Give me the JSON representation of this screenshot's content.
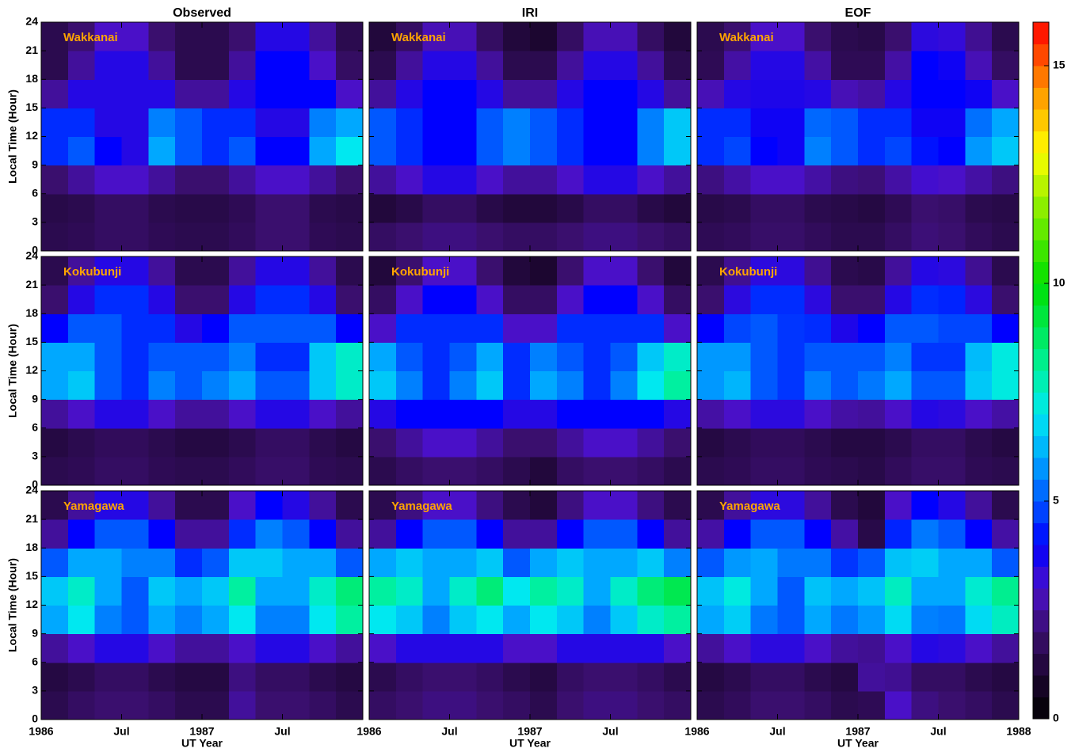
{
  "chart_data": {
    "type": "heatmap",
    "columns": [
      "Observed",
      "IRI",
      "EOF"
    ],
    "ylabel": "Local Time (Hour)",
    "xlabel": "UT Year",
    "xlim": [
      1986,
      1988
    ],
    "xticks": [
      1986,
      {
        "value": 1986.5,
        "label": "Jul"
      },
      1987,
      {
        "value": 1987.5,
        "label": "Jul"
      },
      1988
    ],
    "ylim": [
      0,
      24
    ],
    "yticks": [
      0,
      3,
      6,
      9,
      12,
      15,
      18,
      21,
      24
    ],
    "clim": [
      0,
      16
    ],
    "cticks": [
      0,
      5,
      10,
      15
    ],
    "colorscale": [
      [
        0,
        "#000000"
      ],
      [
        1,
        "#1c0630"
      ],
      [
        2,
        "#3a0f6e"
      ],
      [
        3,
        "#4a10c8"
      ],
      [
        4,
        "#0000ff"
      ],
      [
        5,
        "#0058ff"
      ],
      [
        6,
        "#00a8ff"
      ],
      [
        7,
        "#00e8f0"
      ],
      [
        8,
        "#00f0a0"
      ],
      [
        10,
        "#00e000"
      ],
      [
        12,
        "#a0f000"
      ],
      [
        13,
        "#ffff00"
      ],
      [
        14.5,
        "#ff9000"
      ],
      [
        16,
        "#ff0000"
      ]
    ],
    "rows": [
      {
        "station": "Wakkanai",
        "panels": [
          [
            [
              1.5,
              1.6,
              1.8,
              1.8,
              1.6,
              1.5,
              1.5,
              1.7,
              2,
              2,
              1.6,
              1.5
            ],
            [
              1.4,
              1.5,
              1.8,
              1.8,
              1.5,
              1.4,
              1.4,
              1.6,
              2,
              2,
              1.5,
              1.4
            ],
            [
              2,
              2.5,
              3,
              3,
              2.5,
              2,
              2,
              2.5,
              3,
              3,
              2.5,
              2
            ],
            [
              4.5,
              5,
              4,
              3.5,
              6,
              5,
              4.5,
              5,
              4,
              4,
              6,
              7
            ],
            [
              4.5,
              4.5,
              3.5,
              3.5,
              5.5,
              5,
              4.5,
              4.5,
              3.5,
              3.5,
              5.5,
              6
            ],
            [
              2.5,
              3.5,
              3.5,
              3.5,
              3.5,
              2.5,
              2.5,
              3.5,
              4,
              4,
              4,
              3
            ],
            [
              1.5,
              2.5,
              3.5,
              3.5,
              2.5,
              1.5,
              1.5,
              2.5,
              4,
              4,
              3,
              1.8
            ],
            [
              1.5,
              2,
              3,
              3,
              2,
              1.5,
              1.5,
              2,
              3.5,
              3.5,
              2.5,
              1.5
            ]
          ],
          [
            [
              1.8,
              2,
              2.2,
              2.2,
              2,
              1.8,
              1.8,
              2,
              2.2,
              2.2,
              2,
              1.8
            ],
            [
              1.2,
              1.4,
              1.8,
              1.8,
              1.4,
              1.2,
              1.2,
              1.4,
              1.8,
              1.8,
              1.4,
              1.2
            ],
            [
              2.5,
              3,
              3.5,
              3.5,
              3,
              2.5,
              2.5,
              3,
              3.5,
              3.5,
              3,
              2.5
            ],
            [
              5,
              4.5,
              4,
              4,
              5,
              5.5,
              5,
              4.5,
              4,
              4,
              5.5,
              6.5
            ],
            [
              5,
              4.5,
              4,
              4,
              5,
              5.5,
              5,
              4.5,
              4,
              4,
              5.5,
              6.5
            ],
            [
              2.5,
              3.5,
              4,
              4,
              3.5,
              2.5,
              2.5,
              3.5,
              4,
              4,
              3.5,
              2.5
            ],
            [
              1.5,
              2.5,
              3.5,
              3.5,
              2.5,
              1.5,
              1.5,
              2.5,
              3.5,
              3.5,
              2.5,
              1.5
            ],
            [
              1.2,
              1.8,
              2.8,
              2.8,
              1.8,
              1.2,
              1,
              1.8,
              2.8,
              2.8,
              1.8,
              1.2
            ]
          ],
          [
            [
              1.6,
              1.7,
              1.9,
              1.9,
              1.7,
              1.5,
              1.5,
              1.8,
              2.1,
              2,
              1.7,
              1.5
            ],
            [
              1.4,
              1.5,
              1.8,
              1.8,
              1.5,
              1.4,
              1.3,
              1.6,
              2,
              1.9,
              1.5,
              1.4
            ],
            [
              2.2,
              2.6,
              3,
              3,
              2.6,
              2.2,
              2.1,
              2.6,
              3.1,
              3,
              2.6,
              2.2
            ],
            [
              4.5,
              4.8,
              4,
              3.8,
              5.5,
              5,
              4.5,
              4.8,
              4.2,
              4,
              5.8,
              6.5
            ],
            [
              4.5,
              4.5,
              3.8,
              3.8,
              5.2,
              5,
              4.5,
              4.5,
              3.8,
              3.8,
              5.3,
              6
            ],
            [
              2.8,
              3.5,
              3.6,
              3.6,
              3.5,
              2.8,
              2.6,
              3.5,
              4,
              4,
              3.8,
              3
            ],
            [
              1.6,
              2.6,
              3.5,
              3.5,
              2.6,
              1.6,
              1.6,
              2.6,
              4,
              3.8,
              2.8,
              1.8
            ],
            [
              1.5,
              2,
              3,
              3,
              2,
              1.5,
              1.4,
              2,
              3.4,
              3.3,
              2.4,
              1.5
            ]
          ]
        ]
      },
      {
        "station": "Kokubunji",
        "panels": [
          [
            [
              1.5,
              1.6,
              1.8,
              1.8,
              1.6,
              1.5,
              1.5,
              1.7,
              1.9,
              1.9,
              1.6,
              1.5
            ],
            [
              1.3,
              1.5,
              1.7,
              1.7,
              1.5,
              1.3,
              1.3,
              1.5,
              1.8,
              1.8,
              1.5,
              1.3
            ],
            [
              2.5,
              3,
              3.5,
              3.5,
              3,
              2.5,
              2.5,
              3,
              3.5,
              3.5,
              3,
              2.5
            ],
            [
              6,
              6.5,
              5,
              4.5,
              5.5,
              5,
              5.5,
              6,
              5,
              5,
              6.5,
              7.5
            ],
            [
              6,
              6,
              5,
              4.5,
              5,
              5,
              5,
              5.5,
              4.5,
              4.5,
              6.5,
              7.5
            ],
            [
              4,
              5,
              5,
              4.5,
              4.5,
              3.5,
              4,
              5,
              5,
              5,
              5,
              4
            ],
            [
              2,
              3.5,
              4.5,
              4.5,
              3.5,
              2,
              2,
              3.5,
              4.5,
              4.5,
              3.5,
              2
            ],
            [
              1.5,
              2.5,
              3.5,
              3.5,
              2.5,
              1.5,
              1.5,
              2.5,
              3.5,
              3.5,
              2.5,
              1.5
            ]
          ],
          [
            [
              1.5,
              1.8,
              2,
              2,
              1.8,
              1.5,
              1.2,
              1.8,
              2,
              2,
              1.8,
              1.5
            ],
            [
              2,
              2.5,
              3,
              3,
              2.5,
              2,
              2,
              2.5,
              3,
              3,
              2.5,
              2
            ],
            [
              3.5,
              4,
              4,
              4,
              4,
              3.5,
              3.5,
              4,
              4,
              4,
              4,
              3.5
            ],
            [
              6.5,
              5.5,
              4.5,
              5.5,
              6.5,
              4.5,
              6,
              5.5,
              4.5,
              5.5,
              7,
              8
            ],
            [
              6,
              5,
              4.5,
              5,
              6,
              4.5,
              5.5,
              5,
              4.5,
              5,
              6.5,
              7.5
            ],
            [
              3,
              4.5,
              4.5,
              4.5,
              4.5,
              3,
              3,
              4.5,
              4.5,
              4.5,
              4.5,
              3
            ],
            [
              1.8,
              3,
              4,
              4,
              3,
              1.8,
              1.8,
              3,
              4,
              4,
              3,
              1.8
            ],
            [
              1.2,
              2,
              3,
              3,
              2,
              1.2,
              1,
              2,
              3,
              3,
              2,
              1.2
            ]
          ],
          [
            [
              1.5,
              1.6,
              1.8,
              1.8,
              1.6,
              1.5,
              1.4,
              1.7,
              1.9,
              1.9,
              1.6,
              1.5
            ],
            [
              1.3,
              1.5,
              1.7,
              1.7,
              1.5,
              1.3,
              1.3,
              1.5,
              1.8,
              1.8,
              1.5,
              1.3
            ],
            [
              2.6,
              3,
              3.4,
              3.4,
              3,
              2.6,
              2.5,
              3,
              3.5,
              3.4,
              3,
              2.6
            ],
            [
              5.8,
              6.2,
              5,
              4.6,
              5.5,
              5,
              5.4,
              6,
              5,
              5,
              6.5,
              7.2
            ],
            [
              5.8,
              5.8,
              5,
              4.6,
              5,
              5,
              5,
              5.5,
              4.6,
              4.6,
              6.3,
              7.2
            ],
            [
              4,
              4.8,
              5,
              4.6,
              4.5,
              3.6,
              4,
              5,
              5,
              4.8,
              4.8,
              4
            ],
            [
              2,
              3.4,
              4.5,
              4.5,
              3.4,
              2,
              2,
              3.5,
              4.5,
              4.4,
              3.4,
              2
            ],
            [
              1.5,
              2.4,
              3.4,
              3.4,
              2.4,
              1.5,
              1.4,
              2.5,
              3.5,
              3.4,
              2.4,
              1.5
            ]
          ]
        ]
      },
      {
        "station": "Yamagawa",
        "panels": [
          [
            [
              1.5,
              1.8,
              2,
              2,
              1.8,
              1.5,
              1.5,
              2.5,
              2,
              2,
              1.8,
              1.5
            ],
            [
              1.3,
              1.5,
              1.8,
              1.8,
              1.5,
              1.3,
              1.3,
              2.2,
              1.8,
              1.8,
              1.5,
              1.3
            ],
            [
              2.5,
              3,
              3.5,
              3.5,
              3,
              2.5,
              2.5,
              3,
              3.5,
              3.5,
              3,
              2.5
            ],
            [
              6,
              7,
              5.5,
              5,
              6,
              5.5,
              6,
              7,
              5.5,
              5.5,
              7,
              8
            ],
            [
              6.5,
              7.5,
              6,
              5,
              6.5,
              6,
              6.5,
              8,
              6,
              6,
              7.5,
              8.5
            ],
            [
              5,
              6,
              6,
              5.5,
              5.5,
              4.5,
              5,
              6.5,
              6.5,
              6,
              6,
              5
            ],
            [
              2.5,
              4,
              5,
              5,
              4,
              2.5,
              2.5,
              4.5,
              5.5,
              5,
              4,
              2.5
            ],
            [
              1.5,
              2.5,
              3.5,
              3.5,
              2.5,
              1.5,
              1.5,
              3,
              4,
              3.5,
              2.5,
              1.5
            ]
          ],
          [
            [
              1.8,
              2,
              2.2,
              2.2,
              2,
              1.8,
              1.5,
              2,
              2.2,
              2.2,
              2,
              1.8
            ],
            [
              1.5,
              1.8,
              2,
              2,
              1.8,
              1.5,
              1.3,
              1.8,
              2,
              2,
              1.8,
              1.5
            ],
            [
              3,
              3.5,
              3.5,
              3.5,
              3.5,
              3,
              3,
              3.5,
              3.5,
              3.5,
              3.5,
              3
            ],
            [
              7,
              6.5,
              5.5,
              6.5,
              7,
              6,
              7,
              6.5,
              5.5,
              6.5,
              7.5,
              8
            ],
            [
              8,
              7.5,
              6,
              7.5,
              8.5,
              7,
              8,
              7.5,
              6,
              7.5,
              8.5,
              9
            ],
            [
              6,
              6.5,
              6,
              6,
              6.5,
              5,
              6,
              6.5,
              6,
              6,
              6.5,
              5.5
            ],
            [
              2.5,
              4,
              5,
              5,
              4,
              2.5,
              2.5,
              4,
              5,
              5,
              4,
              2.5
            ],
            [
              1.5,
              2.2,
              3,
              3,
              2.2,
              1.5,
              1.2,
              2.2,
              3,
              3,
              2.2,
              1.5
            ]
          ],
          [
            [
              1.5,
              1.7,
              2,
              2,
              1.8,
              1.5,
              1.6,
              3,
              2.2,
              2,
              1.8,
              1.5
            ],
            [
              1.3,
              1.5,
              1.8,
              1.8,
              1.5,
              1.3,
              2.5,
              2.4,
              1.8,
              1.8,
              1.5,
              1.3
            ],
            [
              2.5,
              3,
              3.4,
              3.4,
              3,
              2.5,
              2.4,
              3,
              3.5,
              3.4,
              3,
              2.5
            ],
            [
              6,
              6.6,
              5.4,
              5,
              6,
              5.4,
              5.8,
              6.8,
              5.5,
              5.4,
              6.8,
              7.6
            ],
            [
              6.4,
              7.2,
              6,
              5,
              6.4,
              6,
              6.4,
              7.6,
              6,
              6,
              7.4,
              8.2
            ],
            [
              5,
              5.8,
              6,
              5.4,
              5.4,
              4.6,
              5,
              6.4,
              6.6,
              6,
              6,
              5
            ],
            [
              2.6,
              4,
              5,
              5,
              4,
              2.6,
              1.4,
              4.4,
              5.4,
              5,
              4,
              2.6
            ],
            [
              1.5,
              2.5,
              3.4,
              3.4,
              2.5,
              1.5,
              1.2,
              3,
              4,
              3.5,
              2.5,
              1.5
            ]
          ]
        ]
      }
    ]
  }
}
